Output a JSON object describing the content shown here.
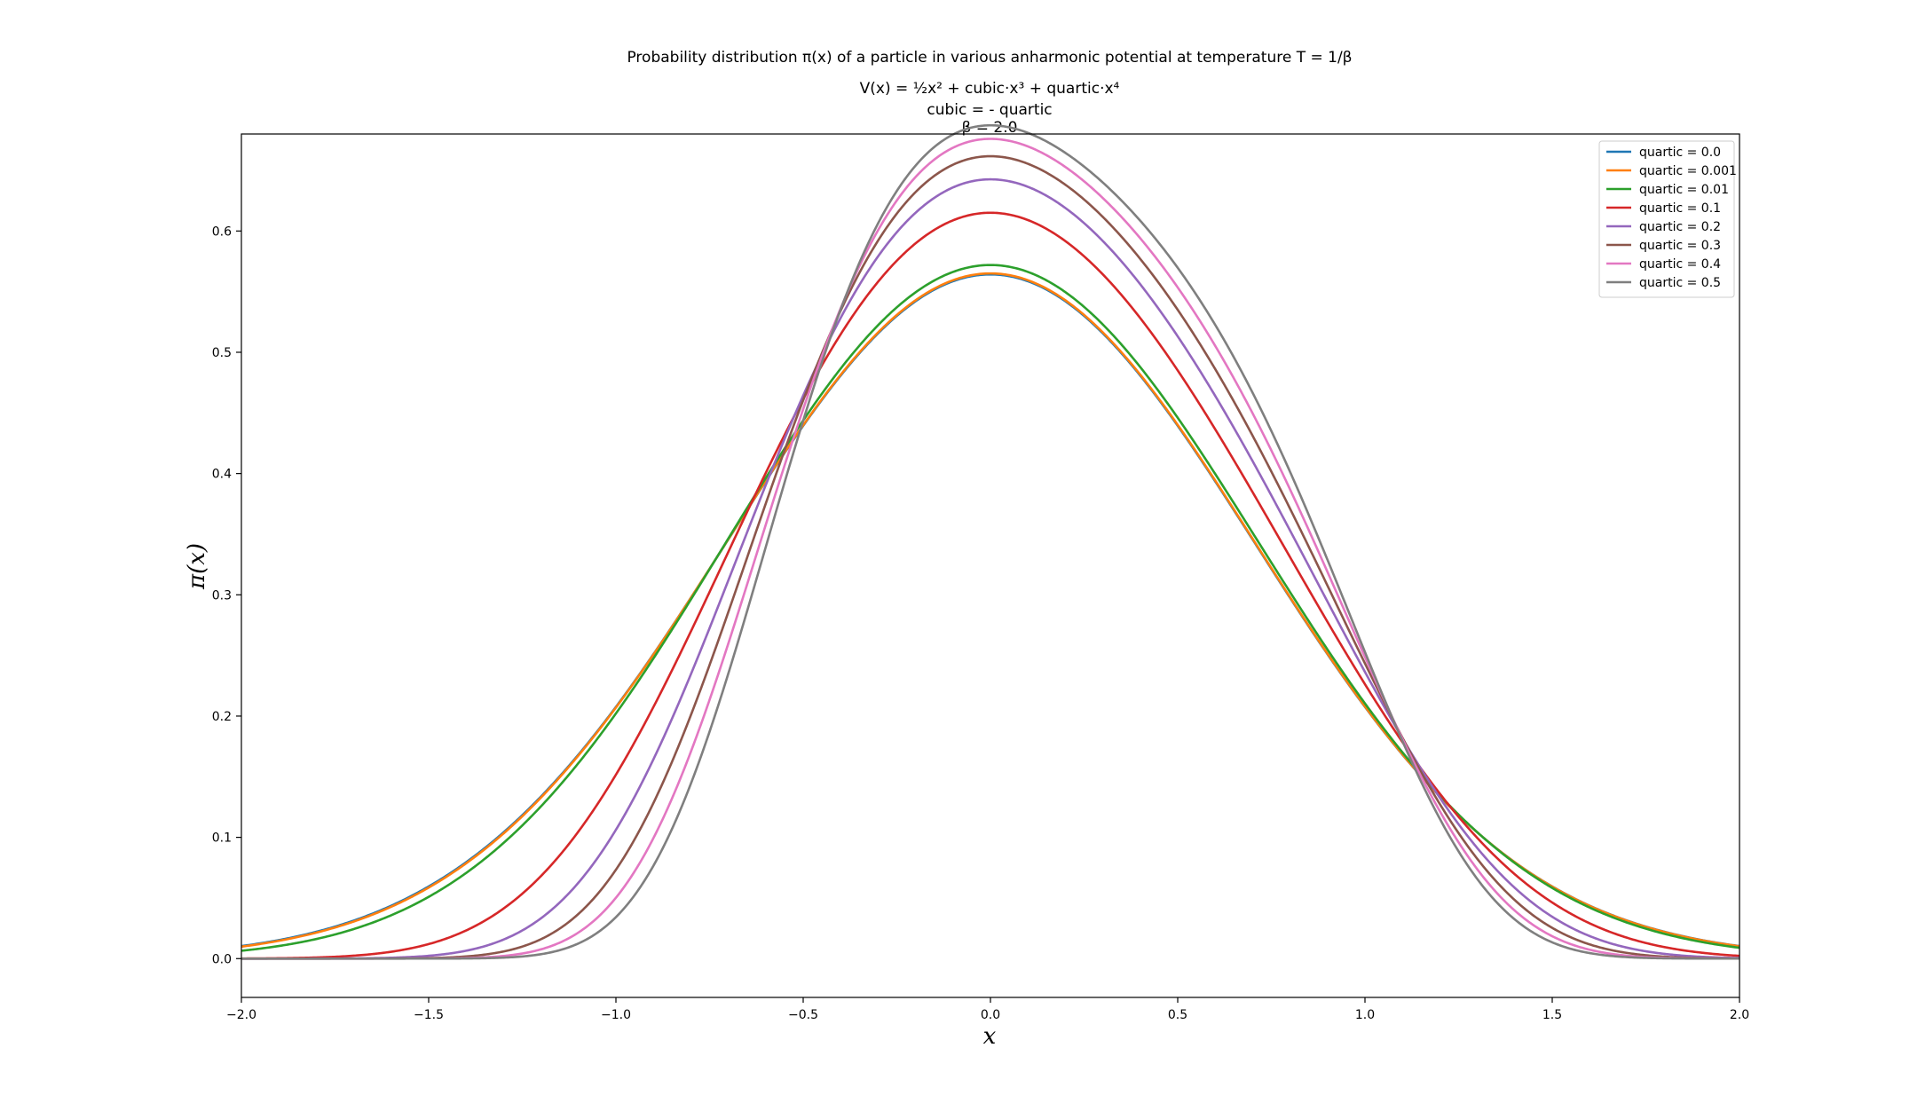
{
  "chart_data": {
    "type": "line",
    "title_lines": [
      "Probability distribution π(x) of a particle in various anharmonic potential at temperature T = 1/β",
      "V(x) = ½x² + cubic·x³ + quartic·x⁴",
      "cubic = - quartic",
      "β = 2.0"
    ],
    "xlabel": "x",
    "ylabel": "π(x)",
    "xlim": [
      -2.0,
      2.0
    ],
    "ylim": [
      -0.032,
      0.68
    ],
    "xticks": [
      -2.0,
      -1.5,
      -1.0,
      -0.5,
      0.0,
      0.5,
      1.0,
      1.5,
      2.0
    ],
    "xtick_labels": [
      "−2.0",
      "−1.5",
      "−1.0",
      "−0.5",
      "0.0",
      "0.5",
      "1.0",
      "1.5",
      "2.0"
    ],
    "yticks": [
      0.0,
      0.1,
      0.2,
      0.3,
      0.4,
      0.5,
      0.6
    ],
    "ytick_labels": [
      "0.0",
      "0.1",
      "0.2",
      "0.3",
      "0.4",
      "0.5",
      "0.6"
    ],
    "grid": false,
    "legend_position": "top-right",
    "beta": 2.0,
    "series": [
      {
        "name": "quartic = 0.0",
        "quartic": 0.0,
        "color": "#1f77b4"
      },
      {
        "name": "quartic = 0.001",
        "quartic": 0.001,
        "color": "#ff7f0e"
      },
      {
        "name": "quartic = 0.01",
        "quartic": 0.01,
        "color": "#2ca02c"
      },
      {
        "name": "quartic = 0.1",
        "quartic": 0.1,
        "color": "#d62728"
      },
      {
        "name": "quartic = 0.2",
        "quartic": 0.2,
        "color": "#9467bd"
      },
      {
        "name": "quartic = 0.3",
        "quartic": 0.3,
        "color": "#8c564b"
      },
      {
        "name": "quartic = 0.4",
        "quartic": 0.4,
        "color": "#e377c2"
      },
      {
        "name": "quartic = 0.5",
        "quartic": 0.5,
        "color": "#7f7f7f"
      }
    ]
  }
}
